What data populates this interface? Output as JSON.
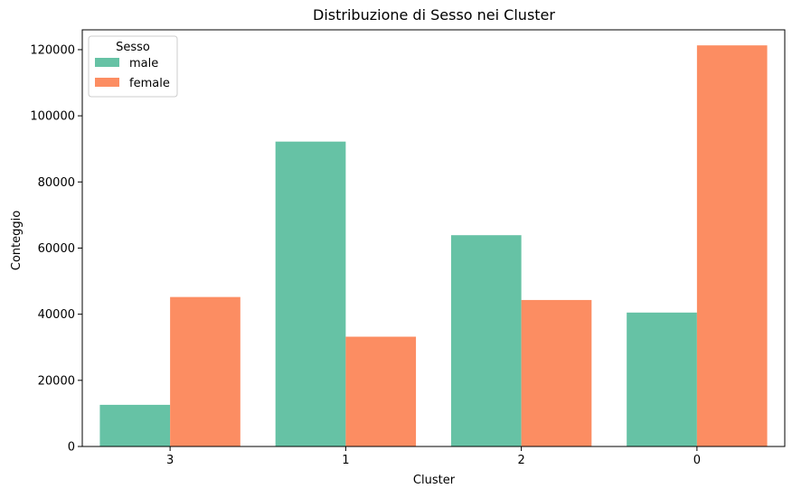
{
  "chart_data": {
    "type": "bar",
    "title": "Distribuzione di Sesso nei Cluster",
    "xlabel": "Cluster",
    "ylabel": "Conteggio",
    "categories": [
      "3",
      "1",
      "2",
      "0"
    ],
    "series": [
      {
        "name": "male",
        "values": [
          12600,
          92200,
          63900,
          40500
        ],
        "color": "#66c2a5"
      },
      {
        "name": "female",
        "values": [
          45200,
          33200,
          44300,
          121300
        ],
        "color": "#fc8d62"
      }
    ],
    "ylim": [
      0,
      126000
    ],
    "yticks": [
      0,
      20000,
      40000,
      60000,
      80000,
      100000,
      120000
    ],
    "grid": false,
    "legend": {
      "title": "Sesso",
      "placement": "top-left"
    }
  }
}
